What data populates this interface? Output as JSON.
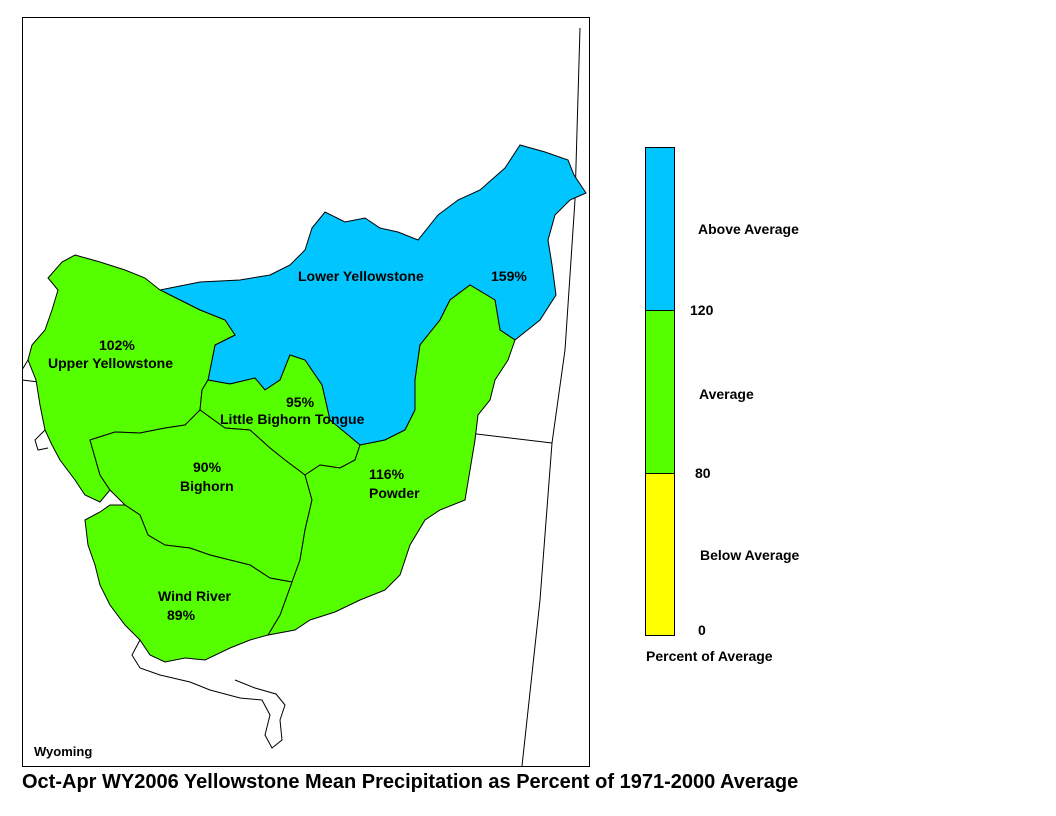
{
  "title": "Oct-Apr WY2006 Yellowstone Mean Precipitation as Percent of 1971-2000 Average",
  "map": {
    "state_label": "Wyoming",
    "basins": [
      {
        "name": "Lower Yellowstone",
        "percent": "159%",
        "category": "Above Average"
      },
      {
        "name": "Upper Yellowstone",
        "percent": "102%",
        "category": "Average"
      },
      {
        "name": "Little Bighorn Tongue",
        "percent": "95%",
        "category": "Average"
      },
      {
        "name": "Bighorn",
        "percent": "90%",
        "category": "Average"
      },
      {
        "name": "Powder",
        "percent": "116%",
        "category": "Average"
      },
      {
        "name": "Wind River",
        "percent": "89%",
        "category": "Average"
      }
    ]
  },
  "legend": {
    "title": "Percent of Average",
    "classes": [
      {
        "label": "Above Average",
        "color": "#00c5ff"
      },
      {
        "label": "Average",
        "color": "#55ff00"
      },
      {
        "label": "Below Average",
        "color": "#ffff00"
      }
    ],
    "breaks": [
      "120",
      "80",
      "0"
    ]
  },
  "colors": {
    "above": "#00c5ff",
    "average": "#55ff00",
    "below": "#ffff00",
    "outline": "#000000"
  }
}
